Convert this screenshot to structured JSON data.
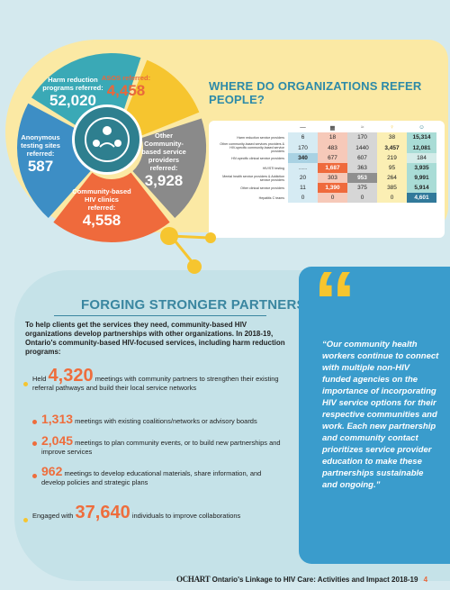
{
  "donut": {
    "segments": [
      {
        "label": "Harm reduction programs referred:",
        "value": "52,020",
        "color": "#3aa9b6"
      },
      {
        "label": "ASOS referred:",
        "value": "4,458",
        "color": "#f6c52f"
      },
      {
        "label": "Other Community-based service providers referred:",
        "value": "3,928",
        "color": "#8a8a8a"
      },
      {
        "label": "Community-based HIV clinics referred:",
        "value": "4,558",
        "color": "#ef6a3c"
      },
      {
        "label": "Anonymous testing sites referred:",
        "value": "587",
        "color": "#3d8ec5"
      }
    ]
  },
  "refer_title": "WHERE DO ORGANIZATIONS REFER PEOPLE?",
  "refer_table": {
    "header_icons": [
      "—",
      "▦",
      "≈",
      "♀",
      "☺"
    ],
    "rows": [
      {
        "label": "Harm reduction service providers",
        "values": [
          "6",
          "18",
          "170",
          "38",
          "15,314"
        ]
      },
      {
        "label": "Other community-based services providers & HIV-specific community-based service providers",
        "values": [
          "170",
          "483",
          "1440",
          "3,457",
          "12,081"
        ]
      },
      {
        "label": "HIV-specific clinical service providers",
        "values": [
          "340",
          "677",
          "607",
          "219",
          "184"
        ]
      },
      {
        "label": "HIV/STI testing",
        "values": [
          "-------",
          "1,687",
          "363",
          "95",
          "3,935"
        ]
      },
      {
        "label": "Mental health service providers & Addiction service providers",
        "values": [
          "20",
          "303",
          "953",
          "264",
          "9,991"
        ]
      },
      {
        "label": "Other clinical service providers",
        "values": [
          "11",
          "1,390",
          "375",
          "385",
          "5,914"
        ]
      },
      {
        "label": "Hepatitis C teams",
        "values": [
          "0",
          "0",
          "0",
          "0",
          "4,601"
        ]
      }
    ]
  },
  "partnerships": {
    "title": "FORGING STRONGER PARTNERSHIPS",
    "intro": "To help clients get the services they need, community-based HIV organizations develop partnerships with other organizations. In 2018-19, Ontario's community-based HIV-focused services, including harm reduction programs:",
    "held": {
      "pre": "Held",
      "num": "4,320",
      "post": "meetings with community partners to strengthen their existing referral pathways and build their local service networks"
    },
    "sub": [
      {
        "num": "1,313",
        "text": "meetings with existing coalitions/networks or advisory boards"
      },
      {
        "num": "2,045",
        "text": "meetings to plan community events, or to build new partnerships and improve services"
      },
      {
        "num": "962",
        "text": "meetings to develop educational materials, share information, and develop policies and strategic plans"
      }
    ],
    "engaged": {
      "pre": "Engaged with",
      "num": "37,640",
      "post": "individuals to improve collaborations"
    }
  },
  "quote": {
    "text": "“Our community health workers continue to connect with multiple non-HIV funded agencies on the importance of incorporating HIV service options for their respective communities and work. Each new partnership and community contact prioritizes service provider education to make these partnerships sustainable and ongoing.”"
  },
  "footer": {
    "logo": "OCHART",
    "text": "Ontario's Linkage to HIV Care: Activities and Impact 2018-19",
    "page": "4"
  }
}
